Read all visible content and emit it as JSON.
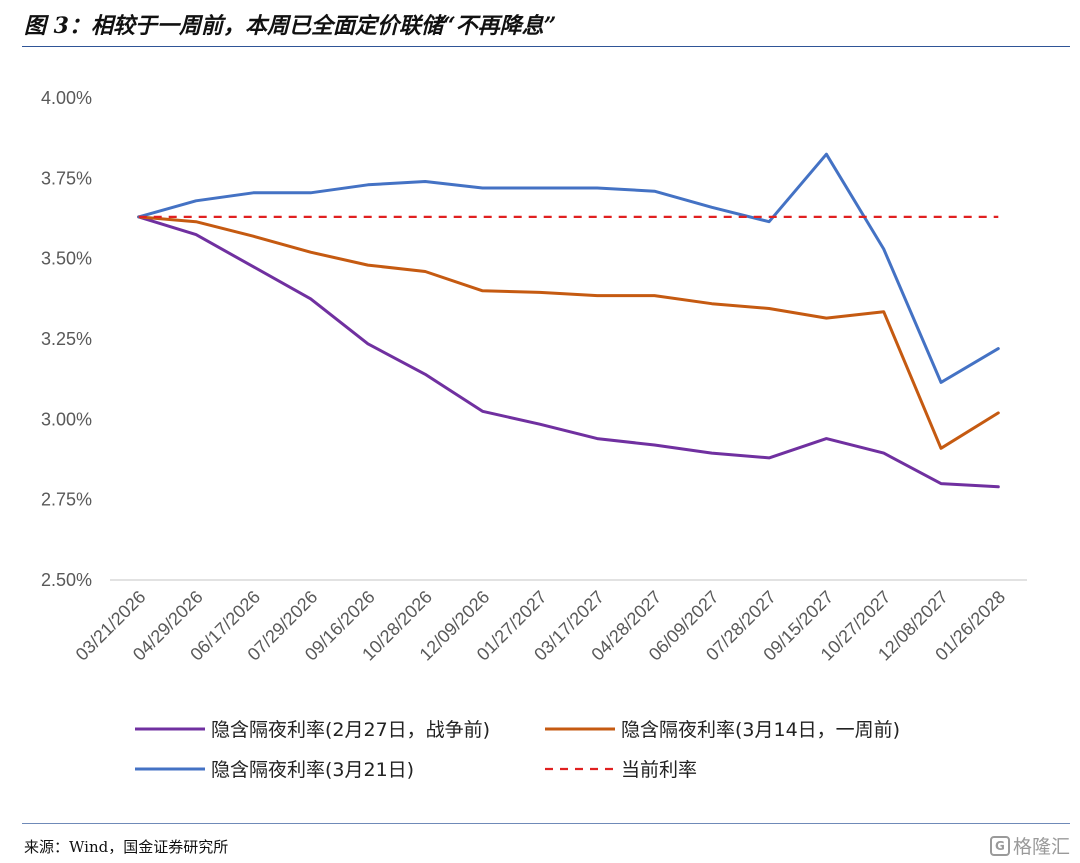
{
  "header": {
    "title": "图 3：相较于一周前，本周已全面定价联储“不再降息”"
  },
  "footer": {
    "source": "来源：Wind，国金证券研究所",
    "watermark": "格隆汇",
    "watermark_mark": "G"
  },
  "colors": {
    "rule": "#2f5597",
    "purple": "#7030a0",
    "orange": "#c55a11",
    "blue": "#4472c4",
    "red": "#e02020",
    "axis_text": "#595959"
  },
  "chart_data": {
    "type": "line",
    "title": "",
    "xlabel": "",
    "ylabel": "",
    "x": [
      "03/21/2026",
      "04/29/2026",
      "06/17/2026",
      "07/29/2026",
      "09/16/2026",
      "10/28/2026",
      "12/09/2026",
      "01/27/2027",
      "03/17/2027",
      "04/28/2027",
      "06/09/2027",
      "07/28/2027",
      "09/15/2027",
      "10/27/2027",
      "12/08/2027",
      "01/26/2028"
    ],
    "ylim": [
      2.5,
      4.0
    ],
    "yticks": [
      2.5,
      2.75,
      3.0,
      3.25,
      3.5,
      3.75,
      4.0
    ],
    "ytick_labels": [
      "2.50%",
      "2.75%",
      "3.00%",
      "3.25%",
      "3.50%",
      "3.75%",
      "4.00%"
    ],
    "series": [
      {
        "name": "隐含隔夜利率(2月27日，战争前)",
        "color": "#7030a0",
        "style": "solid",
        "values": [
          3.63,
          3.575,
          3.475,
          3.375,
          3.235,
          3.14,
          3.025,
          2.985,
          2.94,
          2.92,
          2.895,
          2.88,
          2.94,
          2.895,
          2.8,
          2.79
        ]
      },
      {
        "name": "隐含隔夜利率(3月14日，一周前)",
        "color": "#c55a11",
        "style": "solid",
        "values": [
          3.63,
          3.615,
          3.57,
          3.52,
          3.48,
          3.46,
          3.4,
          3.395,
          3.385,
          3.385,
          3.36,
          3.345,
          3.315,
          3.335,
          2.91,
          3.02
        ]
      },
      {
        "name": "隐含隔夜利率(3月21日)",
        "color": "#4472c4",
        "style": "solid",
        "values": [
          3.63,
          3.68,
          3.705,
          3.705,
          3.73,
          3.74,
          3.72,
          3.72,
          3.72,
          3.71,
          3.66,
          3.615,
          3.825,
          3.53,
          3.115,
          3.22
        ]
      },
      {
        "name": "当前利率",
        "color": "#e02020",
        "style": "dashed",
        "values": [
          3.63,
          3.63,
          3.63,
          3.63,
          3.63,
          3.63,
          3.63,
          3.63,
          3.63,
          3.63,
          3.63,
          3.63,
          3.63,
          3.63,
          3.63,
          3.63
        ]
      }
    ],
    "grid": false,
    "legend_position": "bottom"
  }
}
